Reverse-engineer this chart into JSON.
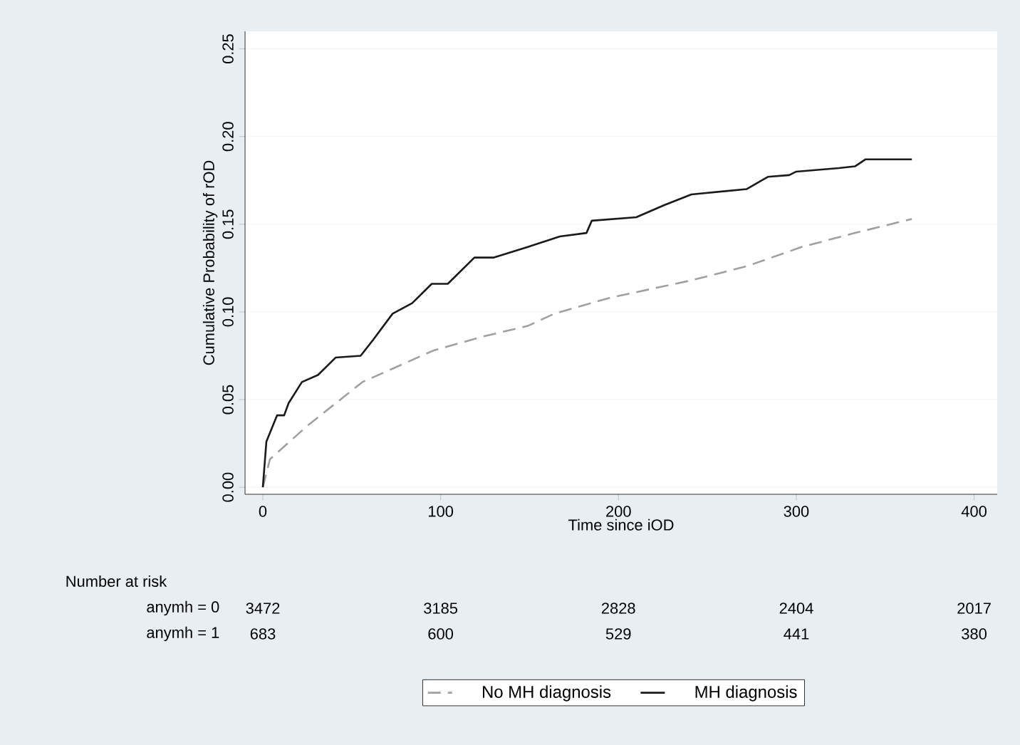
{
  "chart_data": {
    "type": "line",
    "xlabel": "Time since iOD",
    "ylabel": "Cumulative Probability of rOD",
    "xlim": [
      -10,
      413
    ],
    "ylim": [
      -0.004,
      0.26
    ],
    "xticks": [
      0,
      100,
      200,
      300,
      400
    ],
    "yticks": [
      {
        "value": 0,
        "label": "0.00"
      },
      {
        "value": 0.05,
        "label": "0.05"
      },
      {
        "value": 0.1,
        "label": "0.10"
      },
      {
        "value": 0.15,
        "label": "0.15"
      },
      {
        "value": 0.2,
        "label": "0.20"
      },
      {
        "value": 0.25,
        "label": "0.25"
      }
    ],
    "grid": "y",
    "legend": "bottom",
    "marker": "none",
    "series": [
      {
        "name": "No MH diagnosis",
        "color": "#a0a0a0",
        "line_style": "dashed",
        "x": [
          0,
          4,
          25,
          56,
          96,
          124,
          149,
          164,
          195,
          241,
          272,
          303,
          333,
          365
        ],
        "values": [
          0,
          0.016,
          0.035,
          0.06,
          0.078,
          0.086,
          0.092,
          0.099,
          0.108,
          0.118,
          0.126,
          0.137,
          0.145,
          0.153
        ]
      },
      {
        "name": "MH diagnosis",
        "color": "#1a1a1a",
        "line_style": "solid",
        "x": [
          0,
          2,
          8,
          12,
          14.5,
          22,
          31,
          41,
          55,
          62,
          73,
          84,
          95,
          104,
          119,
          130,
          149,
          167,
          182,
          185,
          210,
          226,
          241,
          272,
          284,
          296,
          300,
          324,
          333,
          339,
          365
        ],
        "values": [
          0,
          0.026,
          0.041,
          0.041,
          0.048,
          0.06,
          0.064,
          0.074,
          0.075,
          0.084,
          0.099,
          0.105,
          0.116,
          0.116,
          0.131,
          0.131,
          0.137,
          0.143,
          0.145,
          0.152,
          0.154,
          0.161,
          0.167,
          0.17,
          0.177,
          0.178,
          0.18,
          0.182,
          0.183,
          0.187,
          0.187
        ]
      }
    ],
    "annotations": [
      "Number at risk",
      "anymh = 0",
      "3472",
      "3185",
      "2828",
      "2404",
      "2017",
      "anymh = 1",
      "683",
      "600",
      "529",
      "441",
      "380"
    ]
  }
}
